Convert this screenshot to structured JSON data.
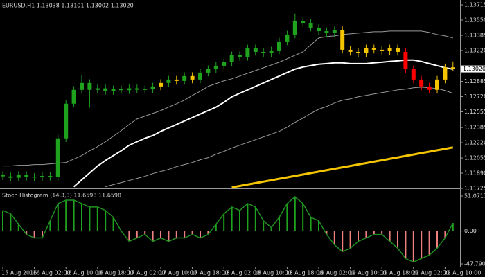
{
  "chart_data": [
    {
      "type": "candlestick",
      "title": "EURUSD,H1  1.13038 1.13101 1.13002 1.13020",
      "categories": [
        "15 Aug 2016",
        null,
        null,
        null,
        "16 Aug 02:00",
        null,
        null,
        null,
        "16 Aug 10:00",
        null,
        null,
        null,
        "16 Aug 18:00",
        null,
        null,
        null,
        "17 Aug 02:00",
        null,
        null,
        null,
        "17 Aug 10:00",
        null,
        null,
        null,
        "17 Aug 18:00",
        null,
        null,
        null,
        "18 Aug 02:00",
        null,
        null,
        null,
        "18 Aug 10:00",
        null,
        null,
        null,
        "18 Aug 18:00",
        null,
        null,
        null,
        "19 Aug 02:00",
        null,
        null,
        null,
        "19 Aug 10:00",
        null,
        null,
        null,
        "19 Aug 18:00",
        null,
        null,
        null,
        "22 Aug 02:00",
        null,
        null,
        null,
        "22 Aug 10:00",
        null
      ],
      "ohlc": [
        [
          1.1187,
          1.1191,
          1.11815,
          1.11855
        ],
        [
          1.11855,
          1.11895,
          1.118,
          1.1184
        ],
        [
          1.1184,
          1.1191,
          1.118,
          1.1187
        ],
        [
          1.1187,
          1.1191,
          1.1181,
          1.1185
        ],
        [
          1.1185,
          1.1189,
          1.11805,
          1.11845
        ],
        [
          1.11845,
          1.119,
          1.11805,
          1.1186
        ],
        [
          1.1186,
          1.119,
          1.1181,
          1.1185
        ],
        [
          1.1185,
          1.12308,
          1.1181,
          1.12268
        ],
        [
          1.12268,
          1.12683,
          1.12228,
          1.12643
        ],
        [
          1.12643,
          1.12833,
          1.12603,
          1.12793
        ],
        [
          1.12793,
          1.1295,
          1.12753,
          1.12868
        ],
        [
          1.12868,
          1.12908,
          1.126,
          1.12793
        ],
        [
          1.12793,
          1.1285,
          1.12753,
          1.1281
        ],
        [
          1.1281,
          1.1285,
          1.1274,
          1.1278
        ],
        [
          1.1278,
          1.1284,
          1.1274,
          1.128
        ],
        [
          1.128,
          1.1284,
          1.1275,
          1.1279
        ],
        [
          1.1279,
          1.1285,
          1.1275,
          1.1281
        ],
        [
          1.1281,
          1.1285,
          1.12755,
          1.12795
        ],
        [
          1.12795,
          1.1284,
          1.12755,
          1.128
        ],
        [
          1.128,
          1.1287,
          1.1276,
          1.1283
        ],
        [
          1.1283,
          1.12908,
          1.1279,
          1.12868
        ],
        [
          1.12868,
          1.12945,
          1.12828,
          1.12905
        ],
        [
          1.12905,
          1.12945,
          1.1285,
          1.1289
        ],
        [
          1.1289,
          1.12983,
          1.1285,
          1.12943
        ],
        [
          1.12943,
          1.12983,
          1.12865,
          1.12905
        ],
        [
          1.12905,
          1.1302,
          1.12865,
          1.1298
        ],
        [
          1.1298,
          1.13058,
          1.1294,
          1.13018
        ],
        [
          1.13018,
          1.13095,
          1.12978,
          1.13055
        ],
        [
          1.13055,
          1.13133,
          1.13015,
          1.13093
        ],
        [
          1.13093,
          1.13208,
          1.13053,
          1.13168
        ],
        [
          1.13168,
          1.13208,
          1.1311,
          1.1315
        ],
        [
          1.1315,
          1.13283,
          1.1311,
          1.13243
        ],
        [
          1.13243,
          1.13283,
          1.13165,
          1.13205
        ],
        [
          1.13205,
          1.13245,
          1.1315,
          1.1319
        ],
        [
          1.1319,
          1.1326,
          1.1315,
          1.1322
        ],
        [
          1.1322,
          1.13358,
          1.1318,
          1.13318
        ],
        [
          1.13318,
          1.13433,
          1.13278,
          1.13393
        ],
        [
          1.13393,
          1.1362,
          1.13353,
          1.13543
        ],
        [
          1.13543,
          1.13583,
          1.1348,
          1.1352
        ],
        [
          1.1352,
          1.1356,
          1.13428,
          1.13468
        ],
        [
          1.13468,
          1.13508,
          1.1339,
          1.1343
        ],
        [
          1.1343,
          1.1347,
          1.1337,
          1.1341
        ],
        [
          1.1341,
          1.1348,
          1.1337,
          1.1344
        ],
        [
          1.1344,
          1.1348,
          1.13188,
          1.13228
        ],
        [
          1.13228,
          1.13268,
          1.13165,
          1.13205
        ],
        [
          1.13205,
          1.13245,
          1.1315,
          1.1319
        ],
        [
          1.1319,
          1.13283,
          1.1315,
          1.13243
        ],
        [
          1.13243,
          1.13283,
          1.13188,
          1.13228
        ],
        [
          1.13228,
          1.13268,
          1.13175,
          1.13215
        ],
        [
          1.13215,
          1.13283,
          1.13175,
          1.13243
        ],
        [
          1.13243,
          1.13283,
          1.13165,
          1.13205
        ],
        [
          1.13205,
          1.13245,
          1.12978,
          1.13018
        ],
        [
          1.13018,
          1.13058,
          1.12865,
          1.12905
        ],
        [
          1.12905,
          1.12945,
          1.1279,
          1.1283
        ],
        [
          1.1283,
          1.1287,
          1.12753,
          1.12793
        ],
        [
          1.12793,
          1.12945,
          1.12753,
          1.12905
        ],
        [
          1.12905,
          1.13078,
          1.12865,
          1.13038
        ],
        [
          1.13038,
          1.13101,
          1.13002,
          1.1302
        ]
      ],
      "colors": [
        "#1fa31f",
        "#1fa31f",
        "#1fa31f",
        "#1fa31f",
        "#1fa31f",
        "#1fa31f",
        "#1fa31f",
        "#1fa31f",
        "#1fa31f",
        "#1fa31f",
        "#1fa31f",
        "#1fa31f",
        "#1fa31f",
        "#1fa31f",
        "#1fa31f",
        "#1fa31f",
        "#1fa31f",
        "#1fa31f",
        "#1fa31f",
        "#1fa31f",
        "#f5c400",
        "#1fa31f",
        "#f5c400",
        "#1fa31f",
        "#f5c400",
        "#1fa31f",
        "#1fa31f",
        "#1fa31f",
        "#1fa31f",
        "#1fa31f",
        "#1fa31f",
        "#1fa31f",
        "#1fa31f",
        "#1fa31f",
        "#1fa31f",
        "#1fa31f",
        "#1fa31f",
        "#1fa31f",
        "#1fa31f",
        "#1fa31f",
        "#1fa31f",
        "#1fa31f",
        "#1fa31f",
        "#f5c400",
        "#f5c400",
        "#f5c400",
        "#f5c400",
        "#f5c400",
        "#f5c400",
        "#f5c400",
        "#f5c400",
        "#ff0000",
        "#ff0000",
        "#ff0000",
        "#ff0000",
        "#f5c400",
        "#f5c400",
        "#f5c400"
      ],
      "lines": [
        {
          "color": "#ffffff",
          "width": 2,
          "values": [
            null,
            null,
            null,
            null,
            null,
            null,
            null,
            null,
            null,
            1.11743,
            1.11818,
            1.11893,
            1.11968,
            1.12028,
            1.12081,
            1.12133,
            1.12193,
            1.12231,
            1.12268,
            1.12298,
            1.12343,
            1.12381,
            1.12418,
            1.12456,
            1.12493,
            1.12531,
            1.12568,
            1.12606,
            1.12658,
            1.12718,
            1.12756,
            1.12793,
            1.12831,
            1.12868,
            1.12906,
            1.12943,
            1.12981,
            1.13018,
            1.13041,
            1.13056,
            1.13071,
            1.13078,
            1.13086,
            1.13086,
            1.13078,
            1.13078,
            1.13078,
            1.13086,
            1.13093,
            1.13101,
            1.13108,
            1.13116,
            1.13116,
            1.13101,
            1.13078,
            1.13056,
            1.13033,
            1.13018
          ]
        },
        {
          "color": "#9a9a9a",
          "width": 1,
          "values": [
            1.11968,
            1.11968,
            1.11976,
            1.11976,
            1.11983,
            1.11983,
            1.11991,
            1.11998,
            1.12006,
            1.12043,
            1.12081,
            1.12133,
            1.12178,
            1.12231,
            1.12291,
            1.12351,
            1.12418,
            1.12478,
            1.12508,
            1.12538,
            1.12568,
            1.12606,
            1.12643,
            1.12681,
            1.12733,
            1.12778,
            1.12831,
            1.12861,
            1.12891,
            1.12913,
            1.12943,
            1.12973,
            1.13003,
            1.13033,
            1.13063,
            1.13093,
            1.13131,
            1.13168,
            1.13206,
            1.13281,
            1.13356,
            1.13371,
            1.13378,
            1.13393,
            1.13401,
            1.13408,
            1.13416,
            1.13423,
            1.13423,
            1.13431,
            1.13431,
            1.13431,
            1.13431,
            1.13431,
            1.13416,
            1.13393,
            1.13378,
            1.13356
          ]
        },
        {
          "color": "#9a9a9a",
          "width": 1,
          "values": [
            null,
            null,
            null,
            null,
            null,
            null,
            null,
            null,
            null,
            null,
            null,
            null,
            null,
            1.11743,
            1.11766,
            1.11788,
            1.11811,
            1.11833,
            1.11856,
            1.11886,
            1.11908,
            1.11931,
            1.11961,
            1.11983,
            1.12006,
            1.12036,
            1.12058,
            1.12096,
            1.12126,
            1.12163,
            1.12193,
            1.12223,
            1.12253,
            1.12283,
            1.12313,
            1.12343,
            1.12388,
            1.12441,
            1.12486,
            1.12538,
            1.12583,
            1.12613,
            1.12651,
            1.12681,
            1.12696,
            1.12718,
            1.12733,
            1.12748,
            1.12763,
            1.12778,
            1.12793,
            1.12801,
            1.12816,
            1.12823,
            1.12816,
            1.12808,
            1.12786,
            1.12756
          ]
        },
        {
          "color": "#f5c400",
          "width": 3,
          "values": [
            null,
            null,
            null,
            null,
            null,
            null,
            null,
            null,
            null,
            null,
            null,
            null,
            null,
            null,
            null,
            null,
            null,
            null,
            null,
            null,
            null,
            null,
            null,
            null,
            null,
            null,
            null,
            null,
            null,
            1.11736,
            1.11751,
            1.11767,
            1.11782,
            1.11798,
            1.11813,
            1.11829,
            1.11844,
            1.1186,
            1.11875,
            1.11891,
            1.11906,
            1.11922,
            1.11937,
            1.11953,
            1.11968,
            1.11984,
            1.11999,
            1.12015,
            1.1203,
            1.12046,
            1.12061,
            1.12077,
            1.12092,
            1.12108,
            1.12123,
            1.12139,
            1.12154,
            1.1217
          ]
        }
      ],
      "ylim": [
        1.11725,
        1.13768
      ],
      "yticks": [
        {
          "value": 1.13715,
          "label": "1.13715"
        },
        {
          "value": 1.1355,
          "label": "1.13550"
        },
        {
          "value": 1.13385,
          "label": "1.13385"
        },
        {
          "value": 1.1322,
          "label": "1.13220"
        },
        {
          "value": 1.12885,
          "label": "1.12885"
        },
        {
          "value": 1.1272,
          "label": "1.12720"
        },
        {
          "value": 1.12555,
          "label": "1.12555"
        },
        {
          "value": 1.12385,
          "label": "1.12385"
        },
        {
          "value": 1.1222,
          "label": "1.12220"
        },
        {
          "value": 1.12055,
          "label": "1.12055"
        },
        {
          "value": 1.1189,
          "label": "1.11890"
        },
        {
          "value": 1.11725,
          "label": "1.11725"
        }
      ],
      "last_price": {
        "value": 1.1302,
        "label": "1.13020"
      }
    },
    {
      "type": "histogram",
      "title": "Stoch Histogram (14,3,3) 11.6598 11.6598",
      "values": [
        30,
        25,
        10,
        -5,
        -10,
        -10,
        15,
        40,
        45,
        45,
        40,
        35,
        35,
        30,
        20,
        0,
        -15,
        -10,
        -5,
        -15,
        -10,
        -15,
        -10,
        -10,
        -5,
        -10,
        -5,
        10,
        25,
        35,
        30,
        40,
        35,
        15,
        5,
        20,
        40,
        50,
        40,
        20,
        15,
        -5,
        -20,
        -30,
        -25,
        -15,
        -10,
        -5,
        -5,
        -15,
        -25,
        -40,
        -45,
        -40,
        -35,
        -25,
        -10,
        11.6598
      ],
      "positive_color": "#1fa31f",
      "negative_color": "#f08080",
      "line_color": "#1f8f1f",
      "ylim": [
        -51.8,
        59.1
      ],
      "yticks": [
        51.0717,
        {
          "value": 0,
          "label": "0.00"
        },
        -47.7905
      ]
    }
  ]
}
